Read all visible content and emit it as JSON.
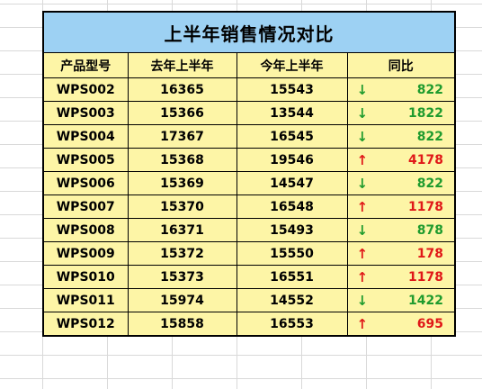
{
  "title": "上半年销售情况对比",
  "headers": [
    "产品型号",
    "去年上半年",
    "今年上半年",
    "同比"
  ],
  "colors": {
    "title_bg": "#9dd1f3",
    "cell_bg": "#fdf5a6",
    "down": "#1f9b2e",
    "up": "#e01818"
  },
  "icons": {
    "down": "down-arrow-icon",
    "up": "up-arrow-icon"
  },
  "rows": [
    {
      "model": "WPS002",
      "last": "16365",
      "current": "15543",
      "trend": "down",
      "arrow": "↓",
      "diff": "822"
    },
    {
      "model": "WPS003",
      "last": "15366",
      "current": "13544",
      "trend": "down",
      "arrow": "↓",
      "diff": "1822"
    },
    {
      "model": "WPS004",
      "last": "17367",
      "current": "16545",
      "trend": "down",
      "arrow": "↓",
      "diff": "822"
    },
    {
      "model": "WPS005",
      "last": "15368",
      "current": "19546",
      "trend": "up",
      "arrow": "↑",
      "diff": "4178"
    },
    {
      "model": "WPS006",
      "last": "15369",
      "current": "14547",
      "trend": "down",
      "arrow": "↓",
      "diff": "822"
    },
    {
      "model": "WPS007",
      "last": "15370",
      "current": "16548",
      "trend": "up",
      "arrow": "↑",
      "diff": "1178"
    },
    {
      "model": "WPS008",
      "last": "16371",
      "current": "15493",
      "trend": "down",
      "arrow": "↓",
      "diff": "878"
    },
    {
      "model": "WPS009",
      "last": "15372",
      "current": "15550",
      "trend": "up",
      "arrow": "↑",
      "diff": "178"
    },
    {
      "model": "WPS010",
      "last": "15373",
      "current": "16551",
      "trend": "up",
      "arrow": "↑",
      "diff": "1178"
    },
    {
      "model": "WPS011",
      "last": "15974",
      "current": "14552",
      "trend": "down",
      "arrow": "↓",
      "diff": "1422"
    },
    {
      "model": "WPS012",
      "last": "15858",
      "current": "16553",
      "trend": "up",
      "arrow": "↑",
      "diff": "695"
    }
  ]
}
